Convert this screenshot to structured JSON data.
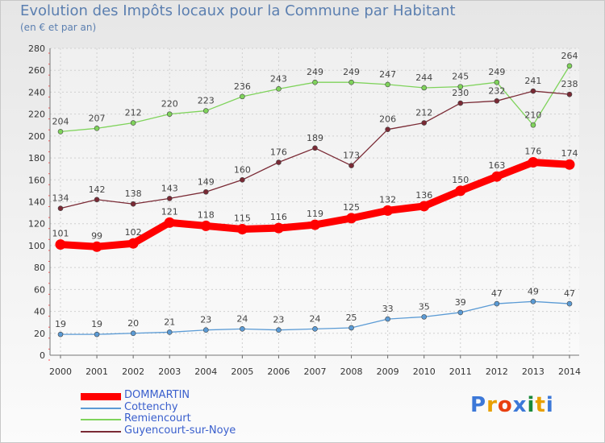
{
  "header": {
    "title": "Evolution des Impôts locaux pour la Commune par Habitant",
    "subtitle": "(en € et par an)"
  },
  "logo": {
    "text": "Proxiti",
    "letters": [
      "P",
      "r",
      "o",
      "x",
      "i",
      "t",
      "i"
    ],
    "colors": [
      "#3c78d8",
      "#e8a000",
      "#e84010",
      "#3c78d8",
      "#1a8a3a",
      "#e8a000",
      "#3c78d8"
    ]
  },
  "chart_data": {
    "type": "line",
    "title": "Evolution des Impôts locaux pour la Commune par Habitant",
    "subtitle": "(en € et par an)",
    "xlabel": "",
    "ylabel": "",
    "x": [
      "2000",
      "2001",
      "2002",
      "2003",
      "2004",
      "2005",
      "2006",
      "2007",
      "2008",
      "2009",
      "2010",
      "2011",
      "2012",
      "2013",
      "2014"
    ],
    "ylim": [
      0,
      280
    ],
    "yticks": [
      0,
      20,
      40,
      60,
      80,
      100,
      120,
      140,
      160,
      180,
      200,
      220,
      240,
      260,
      280
    ],
    "grid": true,
    "legend_position": "bottom-left",
    "series": [
      {
        "name": "DOMMARTIN",
        "color": "#ff0000",
        "emphasis": true,
        "values": [
          101,
          99,
          102,
          121,
          118,
          115,
          116,
          119,
          125,
          132,
          136,
          150,
          163,
          176,
          174
        ]
      },
      {
        "name": "Cottenchy",
        "color": "#5b9bd5",
        "emphasis": false,
        "values": [
          19,
          19,
          20,
          21,
          23,
          24,
          23,
          24,
          25,
          33,
          35,
          39,
          47,
          49,
          47
        ]
      },
      {
        "name": "Remiencourt",
        "color": "#7fd35b",
        "emphasis": false,
        "values": [
          204,
          207,
          212,
          220,
          223,
          236,
          243,
          249,
          249,
          247,
          244,
          245,
          249,
          210,
          264
        ]
      },
      {
        "name": "Guyencourt-sur-Noye",
        "color": "#7a2a35",
        "emphasis": false,
        "values": [
          134,
          142,
          138,
          143,
          149,
          160,
          176,
          189,
          173,
          206,
          212,
          230,
          232,
          241,
          238
        ]
      }
    ]
  }
}
